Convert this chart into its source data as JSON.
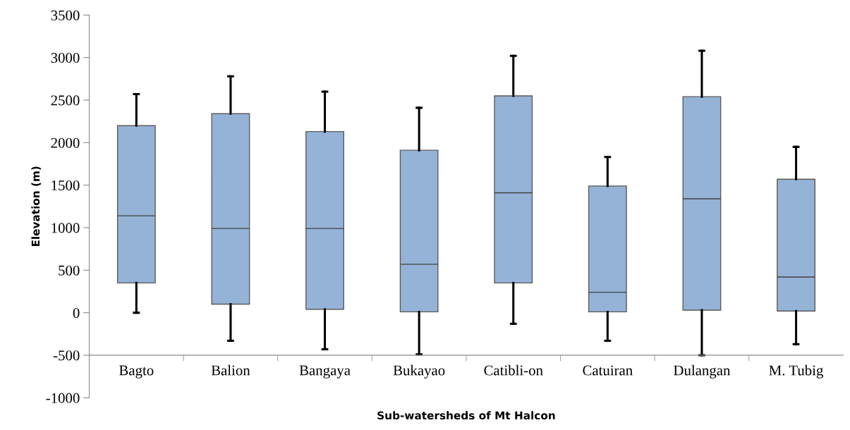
{
  "chart_data": {
    "type": "box",
    "xlabel": "Sub-watersheds of Mt Halcon",
    "ylabel": "Elevation (m)",
    "categories": [
      "Bagto",
      "Balion",
      "Bangaya",
      "Bukayao",
      "Catibli-on",
      "Catuiran",
      "Dulangan",
      "M. Tubig"
    ],
    "boxes": [
      {
        "low": 0,
        "q1": 350,
        "median": 1140,
        "q3": 2200,
        "high": 2570
      },
      {
        "low": -330,
        "q1": 100,
        "median": 990,
        "q3": 2340,
        "high": 2780
      },
      {
        "low": -430,
        "q1": 40,
        "median": 990,
        "q3": 2130,
        "high": 2600
      },
      {
        "low": -490,
        "q1": 10,
        "median": 570,
        "q3": 1910,
        "high": 2410
      },
      {
        "low": -130,
        "q1": 350,
        "median": 1410,
        "q3": 2550,
        "high": 3020
      },
      {
        "low": -330,
        "q1": 10,
        "median": 240,
        "q3": 1490,
        "high": 1830
      },
      {
        "low": -500,
        "q1": 30,
        "median": 1340,
        "q3": 2540,
        "high": 3080
      },
      {
        "low": -370,
        "q1": 20,
        "median": 420,
        "q3": 1570,
        "high": 1950
      }
    ],
    "color": "#95b3d7",
    "ylim": [
      -1000,
      3500
    ],
    "yticks": [
      -1000,
      -500,
      0,
      500,
      1000,
      1500,
      2000,
      2500,
      3000,
      3500
    ],
    "grid": false,
    "legend": false
  }
}
